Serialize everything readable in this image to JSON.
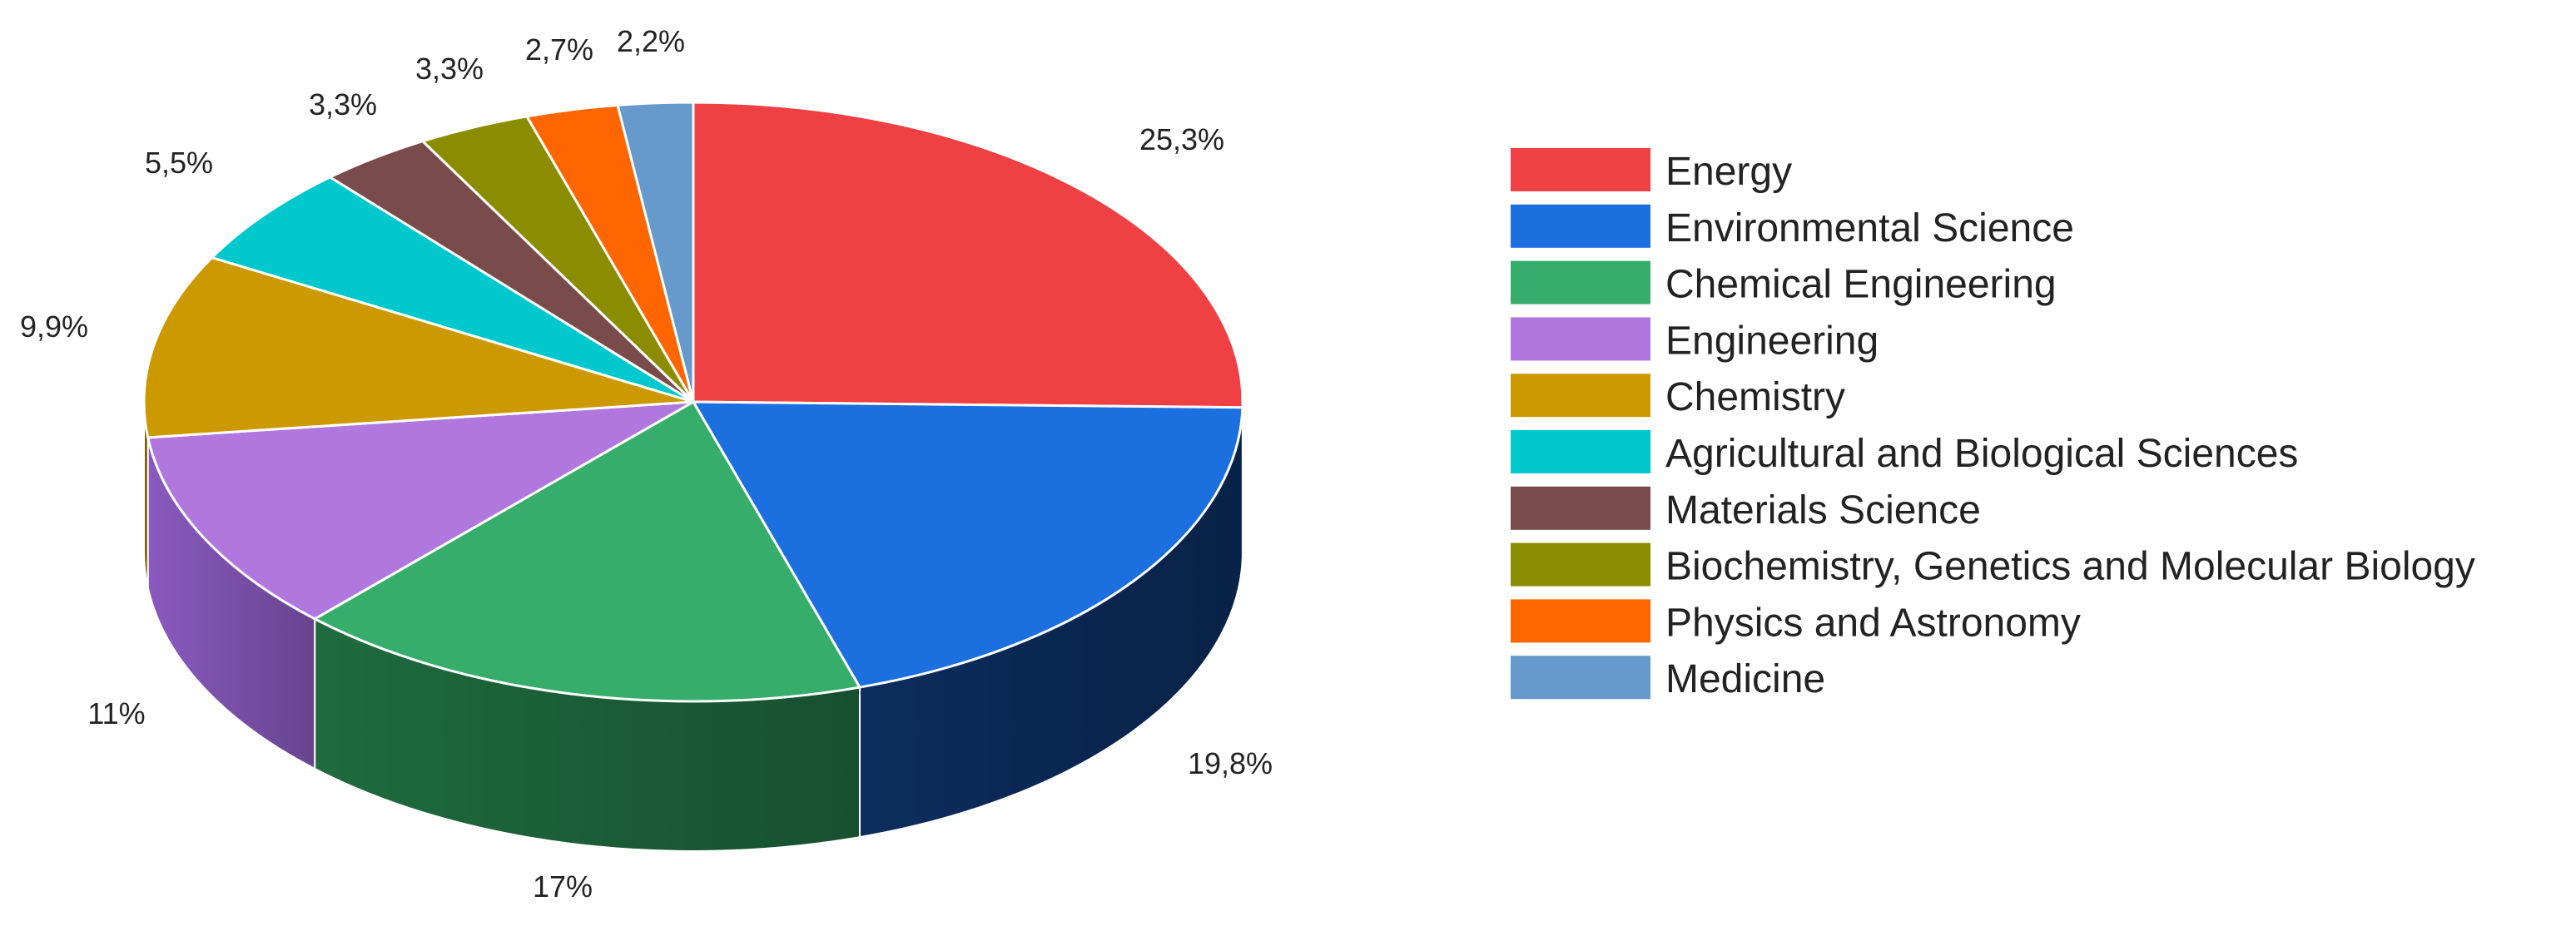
{
  "chart_data": {
    "type": "pie",
    "title": "",
    "style": "3d",
    "legend_position": "right",
    "slices": [
      {
        "name": "Energy",
        "value": 25.3,
        "label": "25,3%",
        "color": "#EF4043",
        "side_color": "#A82A2C"
      },
      {
        "name": "Environmental Science",
        "value": 19.8,
        "label": "19,8%",
        "color": "#1B6FDE",
        "side_color": "#0C2D5E"
      },
      {
        "name": "Chemical Engineering",
        "value": 17,
        "label": "17%",
        "color": "#36AD6A",
        "side_color": "#1F6B3E"
      },
      {
        "name": "Engineering",
        "value": 11,
        "label": "11%",
        "color": "#B077DF",
        "side_color": "#8A5ABF"
      },
      {
        "name": "Chemistry",
        "value": 9.9,
        "label": "9,9%",
        "color": "#CC9900",
        "side_color": "#8F6B00"
      },
      {
        "name": "Agricultural and Biological Sciences",
        "value": 5.5,
        "label": "5,5%",
        "color": "#00C8CC",
        "side_color": "#008A8C"
      },
      {
        "name": "Materials Science",
        "value": 3.3,
        "label": "3,3%",
        "color": "#7A4B4B",
        "side_color": "#4F3030"
      },
      {
        "name": "Biochemistry, Genetics and Molecular Biology",
        "value": 3.3,
        "label": "3,3%",
        "color": "#8C8C00",
        "side_color": "#5C5C00"
      },
      {
        "name": "Physics and Astronomy",
        "value": 2.7,
        "label": "2,7%",
        "color": "#FF6600",
        "side_color": "#B34700"
      },
      {
        "name": "Medicine",
        "value": 2.2,
        "label": "2,2%",
        "color": "#6699CC",
        "side_color": "#45698C"
      }
    ]
  }
}
